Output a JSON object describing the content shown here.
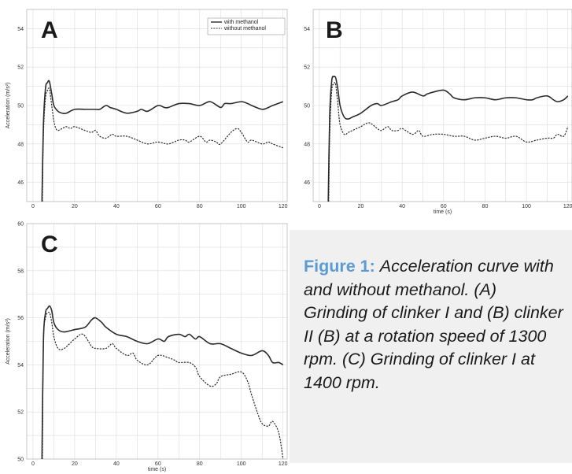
{
  "caption": {
    "label": "Figure 1:",
    "text": "Acceleration curve with and without methanol. (A) Grinding of clinker I and (B) clinker II (B) at a rotation speed of 1300 rpm. (C) Grinding of clinker I at 1400 rpm."
  },
  "colors": {
    "caption_label": "#5b9bd5",
    "caption_bg": "#f0f0f0",
    "line": "#2b2b2b",
    "grid": "#dddddd"
  },
  "chart_data": [
    {
      "panel": "A",
      "type": "line",
      "xlabel": "",
      "ylabel": "Acceleration (m/s²)",
      "xlim": [
        -3,
        122
      ],
      "ylim": [
        45,
        55
      ],
      "xticks": [
        0,
        20,
        40,
        60,
        80,
        100,
        120
      ],
      "yticks": [
        46,
        48,
        50,
        52,
        54
      ],
      "grid": true,
      "legend": {
        "position": "top-right",
        "entries": [
          "with methanol",
          "without methanol"
        ]
      },
      "series": [
        {
          "name": "with methanol",
          "style": "solid",
          "x": [
            4.3,
            5,
            6,
            7,
            7.5,
            8,
            9,
            10,
            12,
            14,
            16,
            20,
            25,
            30,
            32,
            35,
            37,
            40,
            45,
            50,
            52,
            55,
            60,
            63,
            65,
            70,
            75,
            80,
            85,
            90,
            92,
            95,
            100,
            103,
            105,
            110,
            113,
            115,
            120
          ],
          "y": [
            45,
            49,
            50.9,
            51.2,
            51.3,
            51.2,
            50.6,
            50,
            49.7,
            49.6,
            49.6,
            49.8,
            49.8,
            49.8,
            49.8,
            50.0,
            49.9,
            49.8,
            49.6,
            49.7,
            49.8,
            49.7,
            50.0,
            49.9,
            49.9,
            50.1,
            50.1,
            50.0,
            50.2,
            49.9,
            50.1,
            50.1,
            50.2,
            50.1,
            50.0,
            49.8,
            49.9,
            50.0,
            50.2
          ]
        },
        {
          "name": "without methanol",
          "style": "dashed",
          "x": [
            4.5,
            5,
            6,
            7,
            7.5,
            8,
            9,
            10,
            11,
            12,
            14,
            16,
            18,
            20,
            25,
            28,
            30,
            32,
            35,
            38,
            40,
            45,
            50,
            55,
            60,
            65,
            70,
            73,
            75,
            80,
            83,
            85,
            88,
            90,
            95,
            98,
            100,
            103,
            105,
            110,
            113,
            115,
            120
          ],
          "y": [
            45,
            48.5,
            50.4,
            50.8,
            50.9,
            50.8,
            50.0,
            49.2,
            48.8,
            48.7,
            48.8,
            48.9,
            48.8,
            48.9,
            48.7,
            48.6,
            48.7,
            48.4,
            48.3,
            48.5,
            48.4,
            48.4,
            48.2,
            48.0,
            48.1,
            48.0,
            48.2,
            48.2,
            48.1,
            48.4,
            48.1,
            48.2,
            48.1,
            48.0,
            48.6,
            48.8,
            48.6,
            48.1,
            48.2,
            48.0,
            48.1,
            48.0,
            47.8
          ]
        }
      ]
    },
    {
      "panel": "B",
      "type": "line",
      "xlabel": "time (s)",
      "ylabel": "",
      "xlim": [
        -3,
        122
      ],
      "ylim": [
        45,
        55
      ],
      "xticks": [
        0,
        20,
        40,
        60,
        80,
        100,
        120
      ],
      "yticks": [
        46,
        48,
        50,
        52,
        54
      ],
      "grid": true,
      "series": [
        {
          "name": "with methanol",
          "style": "solid",
          "x": [
            4.3,
            5,
            6,
            7,
            7.5,
            8,
            9,
            10,
            12,
            14,
            16,
            20,
            25,
            28,
            30,
            35,
            38,
            40,
            45,
            50,
            52,
            55,
            60,
            63,
            65,
            70,
            75,
            80,
            85,
            90,
            95,
            100,
            103,
            105,
            110,
            113,
            115,
            118,
            120
          ],
          "y": [
            45,
            49.5,
            51.3,
            51.5,
            51.5,
            51.4,
            50.8,
            50.0,
            49.4,
            49.3,
            49.4,
            49.6,
            50.0,
            50.1,
            50.0,
            50.2,
            50.3,
            50.5,
            50.7,
            50.5,
            50.6,
            50.7,
            50.8,
            50.6,
            50.4,
            50.3,
            50.4,
            50.4,
            50.3,
            50.4,
            50.4,
            50.3,
            50.3,
            50.4,
            50.5,
            50.3,
            50.2,
            50.3,
            50.5
          ]
        },
        {
          "name": "without methanol",
          "style": "dashed",
          "x": [
            4.5,
            5,
            6,
            7,
            7.5,
            8,
            9,
            10,
            12,
            14,
            16,
            20,
            24,
            28,
            30,
            33,
            35,
            38,
            40,
            45,
            48,
            50,
            55,
            60,
            65,
            70,
            75,
            80,
            85,
            90,
            95,
            100,
            105,
            110,
            113,
            115,
            118,
            120
          ],
          "y": [
            45,
            48.5,
            50.8,
            51.1,
            51.2,
            51.0,
            50.0,
            49.0,
            48.5,
            48.6,
            48.7,
            48.9,
            49.1,
            48.8,
            48.7,
            48.9,
            48.7,
            48.7,
            48.8,
            48.5,
            48.7,
            48.4,
            48.5,
            48.5,
            48.4,
            48.4,
            48.2,
            48.3,
            48.4,
            48.3,
            48.4,
            48.1,
            48.2,
            48.3,
            48.3,
            48.5,
            48.4,
            48.9
          ]
        }
      ]
    },
    {
      "panel": "C",
      "type": "line",
      "xlabel": "time (s)",
      "ylabel": "Acceleration (m/s²)",
      "xlim": [
        -3,
        122
      ],
      "ylim": [
        50,
        60
      ],
      "xticks": [
        0,
        20,
        40,
        60,
        80,
        100,
        120
      ],
      "yticks": [
        50,
        52,
        54,
        56,
        58,
        60
      ],
      "grid": true,
      "series": [
        {
          "name": "with methanol",
          "style": "solid",
          "x": [
            4.3,
            5,
            6,
            7,
            8,
            9,
            10,
            12,
            15,
            20,
            25,
            28,
            30,
            33,
            35,
            40,
            45,
            50,
            55,
            60,
            63,
            65,
            70,
            73,
            75,
            78,
            80,
            85,
            90,
            95,
            100,
            105,
            110,
            113,
            115,
            118,
            120
          ],
          "y": [
            50,
            55.0,
            56.2,
            56.4,
            56.5,
            56.3,
            55.8,
            55.5,
            55.4,
            55.5,
            55.6,
            55.9,
            56.0,
            55.8,
            55.6,
            55.3,
            55.2,
            55.0,
            54.9,
            55.1,
            55.0,
            55.2,
            55.3,
            55.2,
            55.3,
            55.1,
            55.2,
            54.9,
            54.9,
            54.7,
            54.5,
            54.4,
            54.6,
            54.4,
            54.1,
            54.1,
            54.0
          ]
        },
        {
          "name": "without methanol",
          "style": "dashed",
          "x": [
            4.5,
            5,
            6,
            7,
            8,
            9,
            10,
            12,
            15,
            20,
            24,
            28,
            30,
            35,
            38,
            40,
            45,
            48,
            50,
            55,
            60,
            65,
            68,
            70,
            75,
            78,
            80,
            85,
            88,
            90,
            95,
            100,
            103,
            105,
            108,
            110,
            113,
            115,
            118,
            120
          ],
          "y": [
            50,
            55.0,
            56.0,
            56.2,
            56.2,
            55.8,
            55.2,
            54.7,
            54.7,
            55.1,
            55.3,
            54.8,
            54.7,
            54.7,
            54.9,
            54.7,
            54.4,
            54.5,
            54.2,
            54.0,
            54.4,
            54.3,
            54.2,
            54.1,
            54.1,
            53.9,
            53.5,
            53.1,
            53.2,
            53.5,
            53.6,
            53.7,
            53.3,
            52.7,
            51.9,
            51.5,
            51.4,
            51.6,
            51.1,
            50.0
          ]
        }
      ]
    }
  ]
}
